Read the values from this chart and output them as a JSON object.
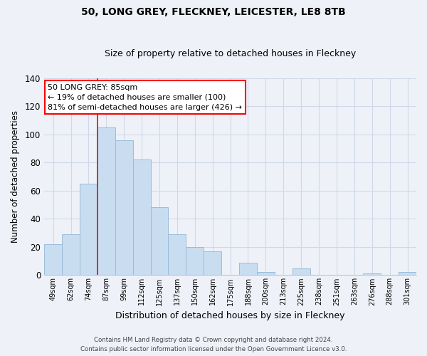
{
  "title": "50, LONG GREY, FLECKNEY, LEICESTER, LE8 8TB",
  "subtitle": "Size of property relative to detached houses in Fleckney",
  "xlabel": "Distribution of detached houses by size in Fleckney",
  "ylabel": "Number of detached properties",
  "bar_labels": [
    "49sqm",
    "62sqm",
    "74sqm",
    "87sqm",
    "99sqm",
    "112sqm",
    "125sqm",
    "137sqm",
    "150sqm",
    "162sqm",
    "175sqm",
    "188sqm",
    "200sqm",
    "213sqm",
    "225sqm",
    "238sqm",
    "251sqm",
    "263sqm",
    "276sqm",
    "288sqm",
    "301sqm"
  ],
  "bar_values": [
    22,
    29,
    65,
    105,
    96,
    82,
    48,
    29,
    20,
    17,
    0,
    9,
    2,
    0,
    5,
    0,
    0,
    0,
    1,
    0,
    2
  ],
  "bar_color": "#c9ddf0",
  "bar_edge_color": "#9bbcd8",
  "vline_index": 3,
  "vline_color": "red",
  "ylim": [
    0,
    140
  ],
  "yticks": [
    0,
    20,
    40,
    60,
    80,
    100,
    120,
    140
  ],
  "annotation_title": "50 LONG GREY: 85sqm",
  "annotation_line1": "← 19% of detached houses are smaller (100)",
  "annotation_line2": "81% of semi-detached houses are larger (426) →",
  "annotation_box_color": "white",
  "annotation_box_edge": "red",
  "footer1": "Contains HM Land Registry data © Crown copyright and database right 2024.",
  "footer2": "Contains public sector information licensed under the Open Government Licence v3.0.",
  "background_color": "#eef2f8",
  "grid_color": "#d0d8e8",
  "title_fontsize": 10,
  "subtitle_fontsize": 9
}
